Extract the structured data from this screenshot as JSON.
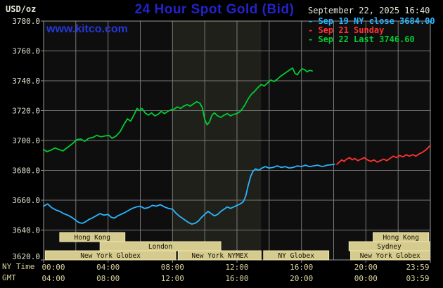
{
  "header": {
    "units_label": "USD/oz",
    "title": "24 Hour Spot Gold (Bid)",
    "datetime": "September 22, 2025 16:40",
    "watermark": "www.kitco.com"
  },
  "legend": [
    {
      "label": "Sep 19 NY close 3684.00",
      "color": "#2ab6ff"
    },
    {
      "label": "Sep 21 Sunday",
      "color": "#ff3232"
    },
    {
      "label": "Sep 22 Last 3746.60",
      "color": "#00cc33"
    }
  ],
  "axes": {
    "x_left_label_row1": "NY Time",
    "x_left_label_row2": "GMT",
    "y_ticks": [
      "3780.0",
      "3760.0",
      "3740.0",
      "3720.0",
      "3700.0",
      "3680.0",
      "3660.0",
      "3640.0",
      "3620.0"
    ],
    "ticks": [
      {
        "t": 0,
        "ny": "00:00",
        "gmt": "04:00"
      },
      {
        "t": 4,
        "ny": "04:00",
        "gmt": "08:00"
      },
      {
        "t": 8,
        "ny": "08:00",
        "gmt": "12:00"
      },
      {
        "t": 12,
        "ny": "12:00",
        "gmt": "16:00"
      },
      {
        "t": 16,
        "ny": "16:00",
        "gmt": "20:00"
      },
      {
        "t": 20,
        "ny": "20:00",
        "gmt": "00:00"
      },
      {
        "t": 24,
        "ny": "23:59",
        "gmt": "03:59"
      }
    ]
  },
  "sessions": [
    {
      "label": "Hong Kong",
      "row": 0,
      "start": 1.0,
      "end": 5.05
    },
    {
      "label": "Hong Kong",
      "row": 0,
      "start": 20.45,
      "end": 23.9
    },
    {
      "label": "London",
      "row": 1,
      "start": 3.5,
      "end": 11.0
    },
    {
      "label": "Sydney",
      "row": 1,
      "start": 18.95,
      "end": 23.95
    },
    {
      "label": "New York Globex",
      "row": 2,
      "start": 0.1,
      "end": 8.2
    },
    {
      "label": "New York NYMEX",
      "row": 2,
      "start": 8.35,
      "end": 13.5
    },
    {
      "label": "NY Globex",
      "row": 2,
      "start": 13.65,
      "end": 17.7
    },
    {
      "label": "New York Globex",
      "row": 2,
      "start": 19.05,
      "end": 23.95
    }
  ],
  "chart_data": {
    "type": "line",
    "title": "24 Hour Spot Gold (Bid)",
    "ylabel": "USD/oz",
    "x_unit": "hours, NY time",
    "x_range": [
      0,
      24
    ],
    "y_range": [
      3620,
      3780
    ],
    "y_grid_step": 20,
    "x_grid_step": 2,
    "grid": true,
    "legend_position": "top-right",
    "shaded_region": {
      "start_hour": 8,
      "end_hour": 13.5
    },
    "series": [
      {
        "id": "sep19",
        "name": "Sep 19 NY close",
        "close": 3684.0,
        "color": "#2ab6ff",
        "points": [
          [
            0,
            3656
          ],
          [
            0.25,
            3657.5
          ],
          [
            0.5,
            3655
          ],
          [
            0.75,
            3653.5
          ],
          [
            1,
            3652.5
          ],
          [
            1.25,
            3651
          ],
          [
            1.5,
            3650
          ],
          [
            1.75,
            3648.5
          ],
          [
            2,
            3646.5
          ],
          [
            2.2,
            3645
          ],
          [
            2.4,
            3644.5
          ],
          [
            2.6,
            3645.5
          ],
          [
            2.8,
            3647
          ],
          [
            3,
            3648
          ],
          [
            3.25,
            3649.5
          ],
          [
            3.5,
            3651
          ],
          [
            3.75,
            3650
          ],
          [
            4,
            3650.5
          ],
          [
            4.2,
            3648.5
          ],
          [
            4.4,
            3648
          ],
          [
            4.6,
            3649.5
          ],
          [
            4.8,
            3650.5
          ],
          [
            5,
            3651.5
          ],
          [
            5.25,
            3653
          ],
          [
            5.5,
            3654.5
          ],
          [
            5.75,
            3655.5
          ],
          [
            6,
            3656
          ],
          [
            6.25,
            3654.5
          ],
          [
            6.5,
            3655
          ],
          [
            6.75,
            3656.5
          ],
          [
            7,
            3656
          ],
          [
            7.25,
            3657
          ],
          [
            7.5,
            3655.5
          ],
          [
            7.75,
            3654.5
          ],
          [
            8,
            3654
          ],
          [
            8.2,
            3651.5
          ],
          [
            8.4,
            3649.5
          ],
          [
            8.6,
            3648
          ],
          [
            8.8,
            3646.5
          ],
          [
            9,
            3645
          ],
          [
            9.2,
            3644
          ],
          [
            9.4,
            3644.5
          ],
          [
            9.6,
            3646
          ],
          [
            9.8,
            3648.5
          ],
          [
            10,
            3650.5
          ],
          [
            10.2,
            3652.5
          ],
          [
            10.4,
            3651
          ],
          [
            10.6,
            3649.5
          ],
          [
            10.8,
            3650.5
          ],
          [
            11,
            3652.5
          ],
          [
            11.2,
            3654
          ],
          [
            11.4,
            3655.5
          ],
          [
            11.6,
            3654.5
          ],
          [
            11.8,
            3655.5
          ],
          [
            12,
            3656.5
          ],
          [
            12.2,
            3657.5
          ],
          [
            12.4,
            3659
          ],
          [
            12.55,
            3663
          ],
          [
            12.7,
            3670
          ],
          [
            12.85,
            3676
          ],
          [
            13,
            3679.5
          ],
          [
            13.15,
            3681
          ],
          [
            13.35,
            3680
          ],
          [
            13.55,
            3681.5
          ],
          [
            13.75,
            3682.5
          ],
          [
            14,
            3681.5
          ],
          [
            14.25,
            3682
          ],
          [
            14.5,
            3683
          ],
          [
            14.75,
            3682
          ],
          [
            15,
            3682.5
          ],
          [
            15.25,
            3681.5
          ],
          [
            15.5,
            3682
          ],
          [
            15.75,
            3683
          ],
          [
            16,
            3682.5
          ],
          [
            16.25,
            3683.5
          ],
          [
            16.5,
            3682.5
          ],
          [
            16.75,
            3683
          ],
          [
            17,
            3683.5
          ],
          [
            17.3,
            3682.5
          ],
          [
            17.6,
            3683.5
          ],
          [
            18.05,
            3684
          ]
        ]
      },
      {
        "id": "sep21",
        "name": "Sep 21 Sunday",
        "color": "#ff3232",
        "points": [
          [
            18.2,
            3684
          ],
          [
            18.35,
            3685.5
          ],
          [
            18.5,
            3687
          ],
          [
            18.65,
            3686
          ],
          [
            18.8,
            3687.5
          ],
          [
            19,
            3688.5
          ],
          [
            19.15,
            3687
          ],
          [
            19.3,
            3688
          ],
          [
            19.5,
            3686.5
          ],
          [
            19.7,
            3687.5
          ],
          [
            19.9,
            3688.5
          ],
          [
            20.1,
            3687
          ],
          [
            20.3,
            3686
          ],
          [
            20.5,
            3687
          ],
          [
            20.7,
            3685.5
          ],
          [
            20.9,
            3686.5
          ],
          [
            21.1,
            3687.5
          ],
          [
            21.3,
            3686.5
          ],
          [
            21.5,
            3688
          ],
          [
            21.7,
            3689.5
          ],
          [
            21.9,
            3688.5
          ],
          [
            22.1,
            3690
          ],
          [
            22.3,
            3689
          ],
          [
            22.5,
            3690.5
          ],
          [
            22.7,
            3689.5
          ],
          [
            22.9,
            3690.5
          ],
          [
            23.1,
            3689.5
          ],
          [
            23.3,
            3691
          ],
          [
            23.5,
            3692
          ],
          [
            23.7,
            3693.5
          ],
          [
            23.85,
            3695
          ],
          [
            23.98,
            3696.5
          ]
        ]
      },
      {
        "id": "sep22",
        "name": "Sep 22 Last",
        "last": 3746.6,
        "color": "#00cc33",
        "points": [
          [
            0,
            3694
          ],
          [
            0.2,
            3692.5
          ],
          [
            0.45,
            3693.5
          ],
          [
            0.7,
            3695
          ],
          [
            0.95,
            3694
          ],
          [
            1.2,
            3693
          ],
          [
            1.5,
            3695.5
          ],
          [
            1.8,
            3698
          ],
          [
            2.05,
            3700.5
          ],
          [
            2.3,
            3701
          ],
          [
            2.55,
            3699.5
          ],
          [
            2.8,
            3701.5
          ],
          [
            3.05,
            3702
          ],
          [
            3.3,
            3703.5
          ],
          [
            3.55,
            3702.5
          ],
          [
            3.8,
            3703
          ],
          [
            4.05,
            3703.5
          ],
          [
            4.25,
            3701.5
          ],
          [
            4.5,
            3703
          ],
          [
            4.75,
            3706
          ],
          [
            5,
            3711
          ],
          [
            5.2,
            3714.5
          ],
          [
            5.4,
            3713
          ],
          [
            5.6,
            3717
          ],
          [
            5.8,
            3721.5
          ],
          [
            5.95,
            3720
          ],
          [
            6.1,
            3721.5
          ],
          [
            6.3,
            3718.5
          ],
          [
            6.5,
            3717
          ],
          [
            6.7,
            3718.5
          ],
          [
            6.9,
            3716.5
          ],
          [
            7.1,
            3717.5
          ],
          [
            7.3,
            3719.5
          ],
          [
            7.5,
            3718
          ],
          [
            7.7,
            3719.5
          ],
          [
            7.9,
            3720.5
          ],
          [
            8.1,
            3721
          ],
          [
            8.3,
            3722.5
          ],
          [
            8.5,
            3721.5
          ],
          [
            8.7,
            3723
          ],
          [
            8.9,
            3724
          ],
          [
            9.1,
            3723
          ],
          [
            9.3,
            3724.5
          ],
          [
            9.5,
            3726
          ],
          [
            9.7,
            3725
          ],
          [
            9.85,
            3722
          ],
          [
            10,
            3714
          ],
          [
            10.15,
            3710.5
          ],
          [
            10.3,
            3712.5
          ],
          [
            10.45,
            3717
          ],
          [
            10.6,
            3718.5
          ],
          [
            10.8,
            3716.5
          ],
          [
            11,
            3715.5
          ],
          [
            11.2,
            3717
          ],
          [
            11.4,
            3718
          ],
          [
            11.6,
            3716.5
          ],
          [
            11.8,
            3717.5
          ],
          [
            12,
            3718
          ],
          [
            12.2,
            3719.5
          ],
          [
            12.35,
            3721.5
          ],
          [
            12.5,
            3724
          ],
          [
            12.7,
            3728
          ],
          [
            12.9,
            3731
          ],
          [
            13.1,
            3733
          ],
          [
            13.3,
            3735.5
          ],
          [
            13.5,
            3737.5
          ],
          [
            13.7,
            3736.5
          ],
          [
            13.9,
            3738.5
          ],
          [
            14.1,
            3740.5
          ],
          [
            14.3,
            3739.5
          ],
          [
            14.5,
            3741
          ],
          [
            14.7,
            3743
          ],
          [
            14.9,
            3744.5
          ],
          [
            15.1,
            3746
          ],
          [
            15.3,
            3747.5
          ],
          [
            15.45,
            3748.5
          ],
          [
            15.6,
            3745
          ],
          [
            15.75,
            3744
          ],
          [
            15.9,
            3746.5
          ],
          [
            16.05,
            3748
          ],
          [
            16.2,
            3747.5
          ],
          [
            16.35,
            3746
          ],
          [
            16.5,
            3747
          ],
          [
            16.67,
            3746.6
          ]
        ]
      }
    ]
  },
  "colors": {
    "background": "#000000",
    "plot_bg": "#0e0e0e",
    "band": "#20201a",
    "grid": "#787878",
    "axis": "#9a9a9a",
    "title": "#2323cc",
    "kitco_link": "#2538d8",
    "datetime_text": "#e8e8d9",
    "units_text": "#e8e8d9",
    "y_tick_text": "#e4e4d2",
    "x_tick_text": "#d9d09c",
    "session_fill": "#d6cb8f",
    "session_border": "#efe6b0",
    "session_text": "#141400"
  }
}
